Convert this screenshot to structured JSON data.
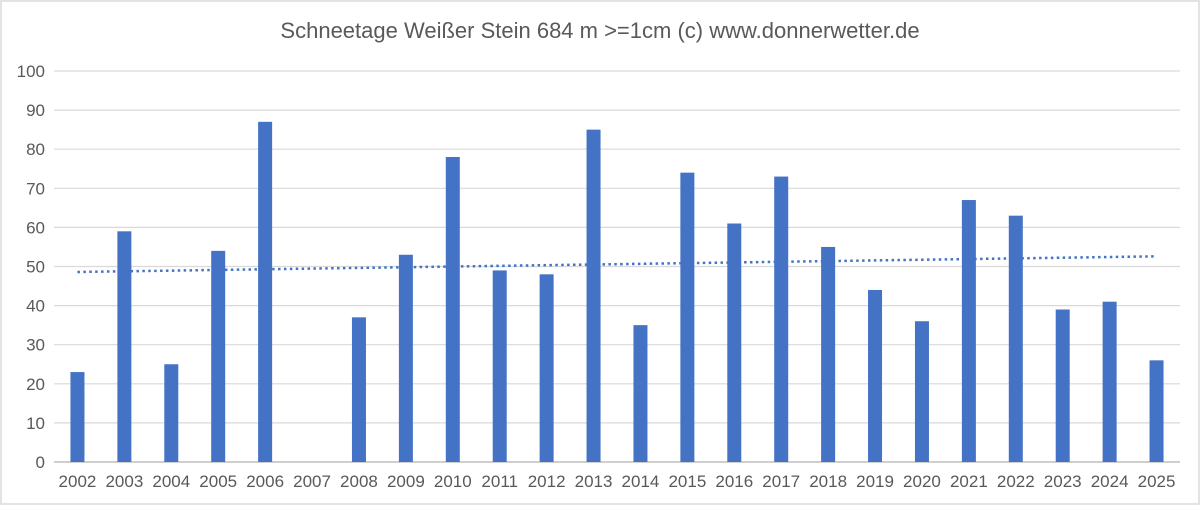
{
  "chart_data": {
    "type": "bar",
    "title": "Schneetage Weißer Stein 684 m >=1cm (c) www.donnerwetter.de",
    "categories": [
      "2002",
      "2003",
      "2004",
      "2005",
      "2006",
      "2007",
      "2008",
      "2009",
      "2010",
      "2011",
      "2012",
      "2013",
      "2014",
      "2015",
      "2016",
      "2017",
      "2018",
      "2019",
      "2020",
      "2021",
      "2022",
      "2023",
      "2024",
      "2025"
    ],
    "values": [
      23,
      59,
      25,
      54,
      87,
      0,
      37,
      53,
      78,
      49,
      48,
      85,
      35,
      74,
      61,
      73,
      55,
      44,
      36,
      67,
      63,
      39,
      41,
      26
    ],
    "xlabel": "",
    "ylabel": "",
    "ylim": [
      0,
      100
    ],
    "ytick_step": 10,
    "yticks": [
      0,
      10,
      20,
      30,
      40,
      50,
      60,
      70,
      80,
      90,
      100
    ],
    "grid": true,
    "legend_position": "none",
    "bar_color": "#4472C4",
    "gridline_color": "#d9d9d9",
    "axisline_color": "#bfbfbf",
    "text_color": "#595959",
    "trendline": {
      "style": "dotted",
      "color": "#4472C4",
      "start_value": 48.6,
      "end_value": 52.6
    }
  }
}
